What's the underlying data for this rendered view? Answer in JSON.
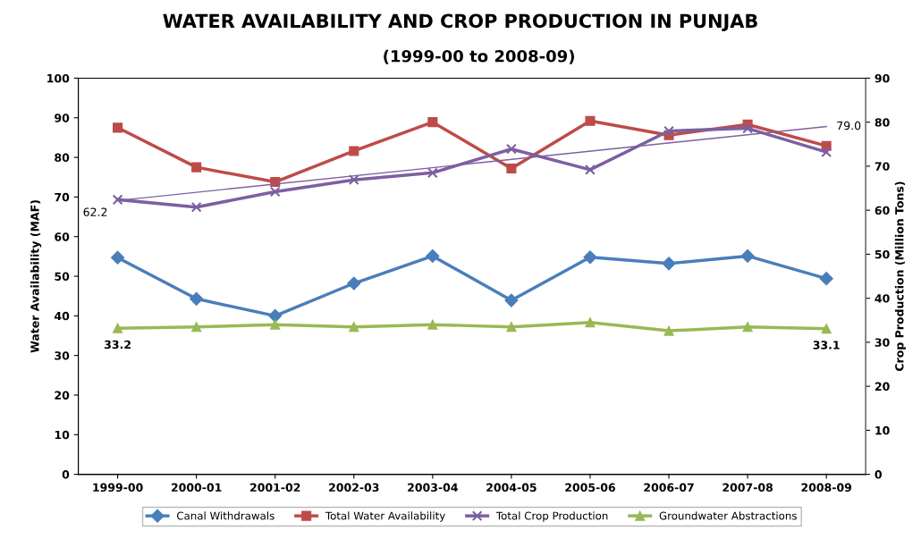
{
  "chart_data": {
    "type": "line",
    "title": "WATER AVAILABILITY AND CROP PRODUCTION IN PUNJAB",
    "subtitle": "(1999-00 to 2008-09)",
    "ylabel": "Water Availability (MAF)",
    "y2label": "Crop Production (Million Tons)",
    "categories": [
      "1999-00",
      "2000-01",
      "2001-02",
      "2002-03",
      "2003-04",
      "2004-05",
      "2005-06",
      "2006-07",
      "2007-08",
      "2008-09"
    ],
    "ylim": [
      0,
      100
    ],
    "yticks": [
      0,
      10,
      20,
      30,
      40,
      50,
      60,
      70,
      80,
      90,
      100
    ],
    "y2lim": [
      0,
      90
    ],
    "y2ticks": [
      0,
      10,
      20,
      30,
      40,
      50,
      60,
      70,
      80,
      90
    ],
    "grid": false,
    "legend": "bottom",
    "series": [
      {
        "name": "Canal Withdrawals",
        "color": "#4a7ebb",
        "marker": "diamond",
        "values": [
          54.7,
          44.3,
          40.0,
          48.2,
          55.1,
          43.9,
          54.8,
          53.2,
          55.1,
          49.4
        ]
      },
      {
        "name": "Total Water Availability",
        "color": "#be4b48",
        "marker": "square",
        "values": [
          87.5,
          77.5,
          73.8,
          81.6,
          88.9,
          77.2,
          89.2,
          85.6,
          88.3,
          82.9
        ]
      },
      {
        "name": "Total Crop Production",
        "color": "#7d5fa0",
        "marker": "cross",
        "axis": "y2",
        "values": [
          62.4,
          60.7,
          64.2,
          66.9,
          68.5,
          73.9,
          69.2,
          78.0,
          78.6,
          73.2
        ]
      },
      {
        "name": "Groundwater Abstractions",
        "color": "#98b954",
        "marker": "triangle",
        "axis": "y2",
        "values": [
          33.2,
          33.5,
          34.0,
          33.5,
          34.0,
          33.5,
          34.5,
          32.6,
          33.5,
          33.1
        ],
        "value_labels": [
          "33.2",
          null,
          null,
          null,
          null,
          null,
          null,
          null,
          null,
          "33.1"
        ]
      },
      {
        "color": "#7d5fa0",
        "marker": "none",
        "axis": "y2",
        "values": [
          62.2,
          null,
          null,
          null,
          null,
          null,
          null,
          null,
          null,
          79.0
        ],
        "value_labels": [
          "62.2",
          null,
          null,
          null,
          null,
          null,
          null,
          null,
          null,
          "79.0"
        ]
      }
    ]
  }
}
